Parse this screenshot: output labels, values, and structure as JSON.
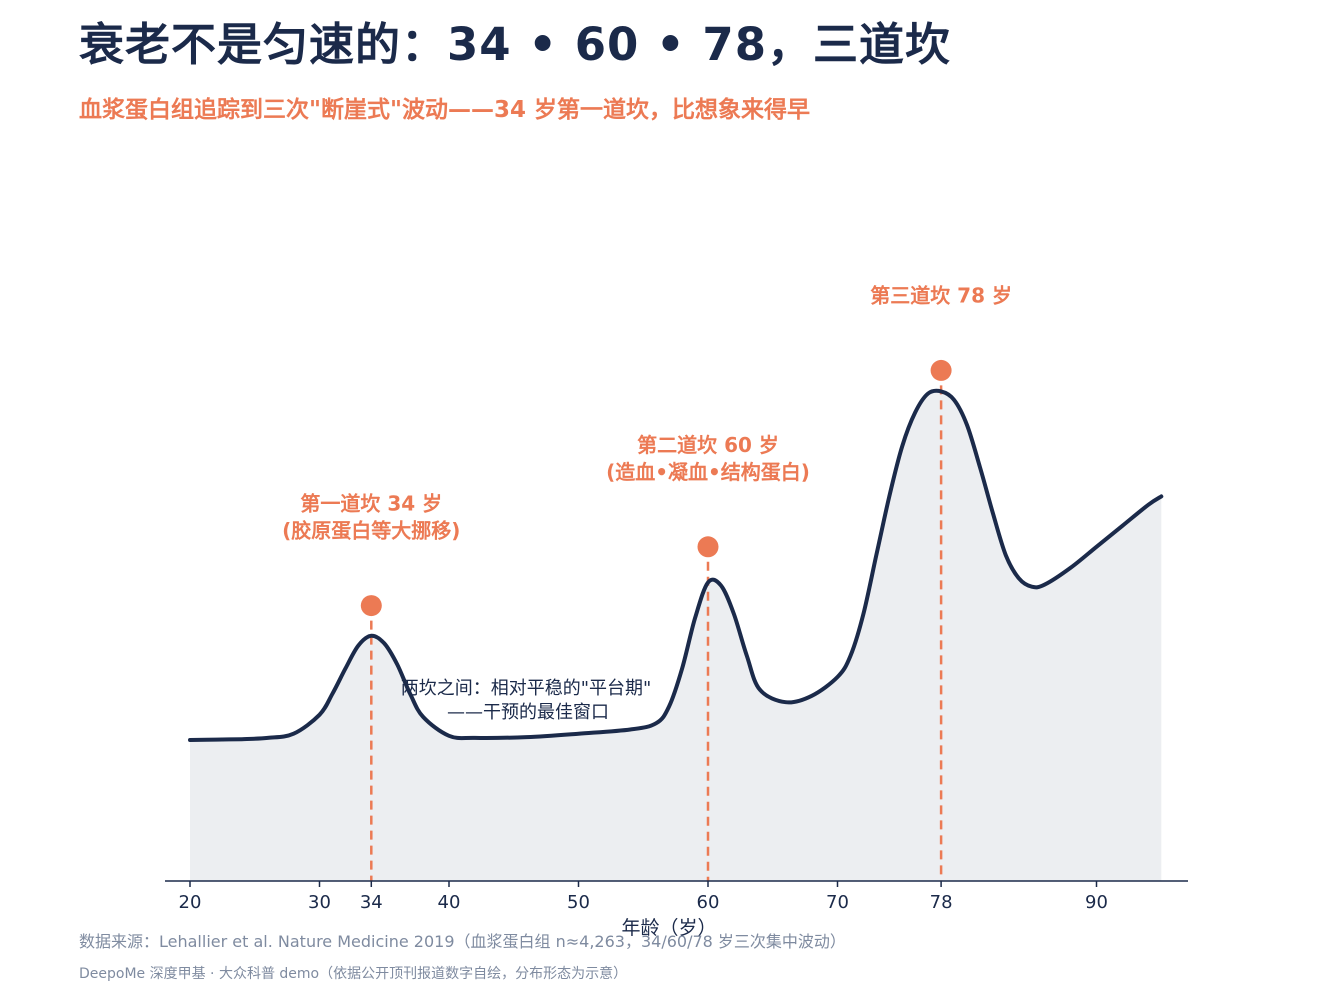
{
  "header": {
    "title": "衰老不是匀速的：34 • 60 • 78，三道坎",
    "subtitle": "血浆蛋白组追踪到三次\"断崖式\"波动——34 岁第一道坎，比想象来得早"
  },
  "footer": {
    "source": "数据来源：Lehallier et al. Nature Medicine 2019（血浆蛋白组 n≈4,263，34/60/78 岁三次集中波动）",
    "credit": "DeepoMe 深度甲基 · 大众科普 demo（依据公开顶刊报道数字自绘，分布形态为示意）"
  },
  "colors": {
    "line": "#1b2a4a",
    "accent": "#ec7a54",
    "fill": "#eceef1",
    "axis": "#1b2a4a"
  },
  "chart_data": {
    "type": "area",
    "xlabel": "年龄（岁）",
    "ylabel": "",
    "xlim": [
      18,
      95.5
    ],
    "ylim": [
      0,
      100
    ],
    "x_ticks": [
      20,
      30,
      34,
      40,
      50,
      60,
      70,
      78,
      90
    ],
    "grid": false,
    "y_axis_visible": false,
    "series": [
      {
        "x": [
          20,
          22,
          24,
          26,
          28,
          30,
          31,
          32,
          33,
          34,
          35,
          36,
          37,
          38,
          40,
          42,
          46,
          50,
          54,
          56,
          57,
          58,
          59,
          60,
          61,
          62,
          63,
          64,
          66,
          68,
          70,
          71,
          72,
          73,
          74,
          75,
          76,
          77,
          78,
          79,
          80,
          81,
          82,
          83,
          84,
          85,
          86,
          88,
          90,
          92,
          94,
          95
        ],
        "y": [
          10,
          10.1,
          10.2,
          10.5,
          11.5,
          16,
          21,
          27,
          32.5,
          34.8,
          33,
          28,
          21,
          15.5,
          11,
          10.5,
          10.7,
          11.5,
          12.5,
          14,
          18,
          27,
          39,
          47.5,
          46.8,
          40,
          30,
          22,
          19,
          20.5,
          25,
          30,
          40,
          54,
          68,
          80,
          88,
          92.5,
          93,
          91,
          85,
          75,
          64,
          54,
          48.5,
          46.5,
          47,
          51,
          56,
          61,
          66,
          68
        ]
      }
    ],
    "markers": [
      {
        "x": 34,
        "y": 42
      },
      {
        "x": 60,
        "y": 56
      },
      {
        "x": 78,
        "y": 98
      }
    ],
    "annotations": [
      {
        "x": 34,
        "lines": [
          "第一道坎 34 岁",
          "(胶原蛋白等大挪移)"
        ]
      },
      {
        "x": 60,
        "lines": [
          "第二道坎 60 岁",
          "(造血•凝血•结构蛋白)"
        ]
      },
      {
        "x": 78,
        "lines": [
          "第三道坎 78 岁"
        ]
      }
    ],
    "note": {
      "lines": [
        "两坎之间：相对平稳的\"平台期\"",
        "——干预的最佳窗口"
      ]
    }
  }
}
